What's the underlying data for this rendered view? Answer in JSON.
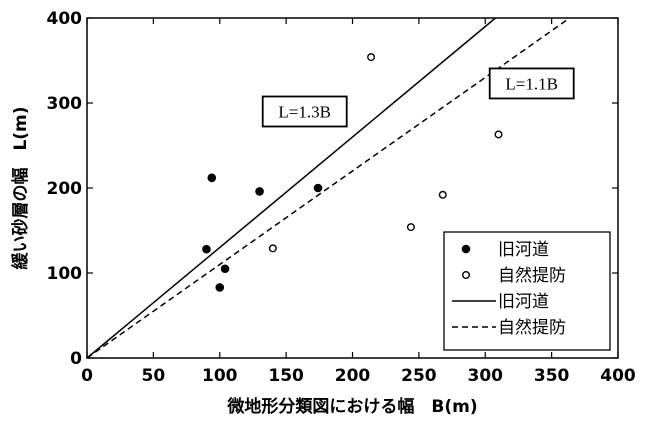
{
  "chart_data": {
    "type": "scatter",
    "xlabel": "微地形分類図における幅　B(m)",
    "ylabel": "緩い砂層の幅　L(m)",
    "xlim": [
      0,
      400
    ],
    "ylim": [
      0,
      400
    ],
    "xticks": [
      "0",
      "50",
      "100",
      "150",
      "200",
      "250",
      "300",
      "350",
      "400"
    ],
    "yticks": [
      "0",
      "100",
      "200",
      "300",
      "400"
    ],
    "grid": false,
    "legend_position": "bottom-right",
    "series": [
      {
        "name": "旧河道",
        "kind": "points",
        "marker": "filled-circle",
        "x": [
          90,
          94,
          100,
          104,
          130,
          174
        ],
        "y": [
          128,
          212,
          83,
          105,
          196,
          200
        ]
      },
      {
        "name": "自然提防",
        "kind": "points",
        "marker": "open-circle",
        "x": [
          140,
          214,
          244,
          268,
          310
        ],
        "y": [
          129,
          354,
          154,
          192,
          263
        ]
      },
      {
        "name": "旧河道",
        "kind": "line",
        "style": "solid",
        "x": [
          0,
          307.7
        ],
        "y": [
          0,
          400
        ]
      },
      {
        "name": "自然提防",
        "kind": "line",
        "style": "dashed",
        "x": [
          0,
          363.6
        ],
        "y": [
          0,
          400
        ]
      }
    ],
    "annotations": [
      {
        "text": "L=1.3B",
        "x": 164,
        "y": 290
      },
      {
        "text": "L=1.1B",
        "x": 335,
        "y": 323
      }
    ]
  }
}
